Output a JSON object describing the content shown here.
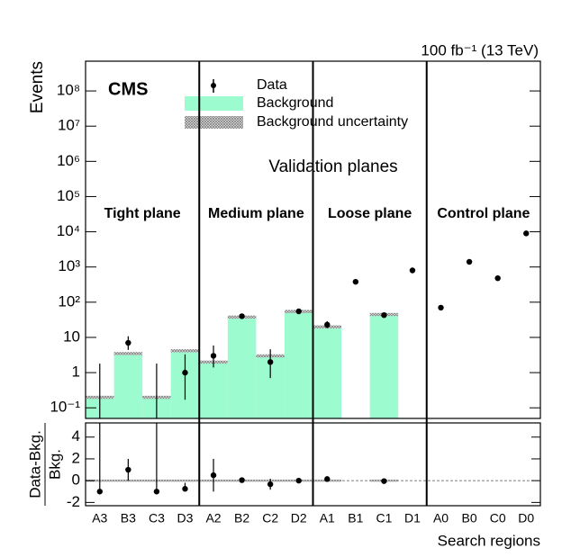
{
  "chart_data": [
    {
      "type": "log-hist",
      "ylabel": "Events",
      "annotations": [
        "CMS",
        "100 fb⁻¹ (13 TeV)",
        "Validation planes"
      ],
      "planes": [
        "Tight plane",
        "Medium plane",
        "Loose plane",
        "Control plane"
      ],
      "categories": [
        "A3",
        "B3",
        "C3",
        "D3",
        "A2",
        "B2",
        "C2",
        "D2",
        "A1",
        "B1",
        "C1",
        "D1",
        "A0",
        "B0",
        "C0",
        "D0"
      ],
      "series": [
        {
          "name": "Background",
          "color": "#9cfccf",
          "values": [
            0.2,
            3.5,
            0.2,
            4.2,
            2,
            38,
            3,
            55,
            20,
            null,
            45,
            null,
            null,
            null,
            null,
            null
          ],
          "uncertainty": [
            0.02,
            0.35,
            0.02,
            0.42,
            0.2,
            3.8,
            0.3,
            5.5,
            2,
            null,
            4.5,
            null,
            null,
            null,
            null,
            null
          ]
        },
        {
          "name": "Data",
          "color": "#000000",
          "values": [
            0,
            7,
            0,
            1,
            3,
            40,
            2,
            55,
            23,
            380,
            43,
            800,
            70,
            1400,
            480,
            9000
          ],
          "err_low": [
            0,
            2.6,
            0,
            0.83,
            1.6,
            6.3,
            1.3,
            7.4,
            4.8,
            19,
            6.5,
            28,
            8.4,
            37,
            22,
            95
          ],
          "err_high": [
            1.8,
            3.8,
            1.8,
            2.3,
            2.9,
            7.4,
            2.6,
            8.4,
            5.9,
            20,
            7.6,
            29,
            9.4,
            38,
            23,
            96
          ]
        }
      ],
      "uncertainty_name": "Background uncertainty",
      "log_scale": true,
      "legend": "top",
      "ylim": [
        0.05,
        700000000
      ],
      "yticks": [
        {
          "value": 0.1,
          "label": "10⁻¹"
        },
        1,
        10,
        {
          "value": 100,
          "label": "10²"
        },
        {
          "value": 1000,
          "label": "10³"
        },
        {
          "value": 10000,
          "label": "10⁴"
        },
        {
          "value": 100000,
          "label": "10⁵"
        },
        {
          "value": 1000000,
          "label": "10⁶"
        },
        {
          "value": 10000000,
          "label": "10⁷"
        },
        {
          "value": 100000000,
          "label": "10⁸"
        }
      ]
    },
    {
      "type": "ratio",
      "ylabel": "Data-Bkg.",
      "ylabel_denominator": "Bkg.",
      "xlabel": "Search regions",
      "values": [
        -1,
        1,
        -1,
        -0.75,
        0.5,
        0.05,
        -0.33,
        0,
        0.15,
        null,
        -0.04,
        null,
        null,
        null,
        null,
        null
      ],
      "err_low": [
        0,
        1,
        0,
        0.2,
        1.5,
        0.2,
        0.5,
        0.15,
        0.25,
        null,
        0.15,
        null,
        null,
        null,
        null,
        null
      ],
      "err_high": [
        9,
        1,
        9,
        0.55,
        1.5,
        0.2,
        0.5,
        0.15,
        0.25,
        null,
        0.15,
        null,
        null,
        null,
        null,
        null
      ],
      "ylim": [
        -2.3,
        5.3
      ],
      "yticks": [
        -2,
        0,
        2,
        4
      ]
    }
  ]
}
